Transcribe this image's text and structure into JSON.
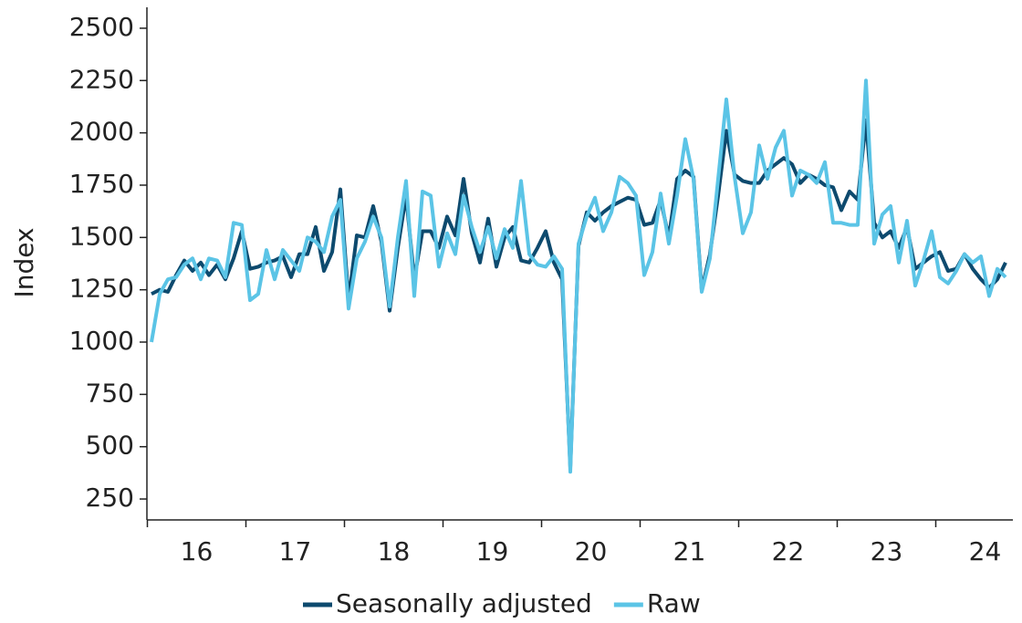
{
  "chart_data": {
    "type": "line",
    "y_label": "Index",
    "categories": [
      null,
      null,
      null,
      null,
      null,
      null,
      "16",
      null,
      null,
      null,
      null,
      null,
      null,
      null,
      null,
      null,
      null,
      null,
      "17",
      null,
      null,
      null,
      null,
      null,
      null,
      null,
      null,
      null,
      null,
      null,
      "18",
      null,
      null,
      null,
      null,
      null,
      null,
      null,
      null,
      null,
      null,
      null,
      "19",
      null,
      null,
      null,
      null,
      null,
      null,
      null,
      null,
      null,
      null,
      null,
      "20",
      null,
      null,
      null,
      null,
      null,
      null,
      null,
      null,
      null,
      null,
      null,
      "21",
      null,
      null,
      null,
      null,
      null,
      null,
      null,
      null,
      null,
      null,
      null,
      "22",
      null,
      null,
      null,
      null,
      null,
      null,
      null,
      null,
      null,
      null,
      null,
      "23",
      null,
      null,
      null,
      null,
      null,
      null,
      null,
      null,
      null,
      null,
      null,
      "24",
      null,
      null
    ],
    "series": [
      {
        "name": "Seasonally adjusted",
        "color": "#0d4a6e",
        "values": [
          1230,
          1250,
          1240,
          1320,
          1390,
          1340,
          1380,
          1320,
          1370,
          1300,
          1400,
          1530,
          1350,
          1360,
          1380,
          1390,
          1410,
          1310,
          1420,
          1420,
          1550,
          1340,
          1430,
          1730,
          1200,
          1510,
          1500,
          1650,
          1480,
          1150,
          1450,
          1700,
          1300,
          1530,
          1530,
          1450,
          1600,
          1510,
          1780,
          1520,
          1380,
          1590,
          1360,
          1500,
          1550,
          1390,
          1380,
          1450,
          1530,
          1380,
          1300,
          400,
          1460,
          1620,
          1580,
          1620,
          1650,
          1670,
          1690,
          1680,
          1560,
          1570,
          1680,
          1500,
          1780,
          1820,
          1790,
          1250,
          1420,
          1700,
          2010,
          1800,
          1770,
          1760,
          1760,
          1820,
          1850,
          1880,
          1850,
          1760,
          1800,
          1780,
          1750,
          1740,
          1630,
          1720,
          1680,
          2060,
          1570,
          1500,
          1530,
          1450,
          1550,
          1350,
          1380,
          1410,
          1430,
          1340,
          1350,
          1420,
          1350,
          1300,
          1260,
          1300,
          1380
        ]
      },
      {
        "name": "Raw",
        "color": "#5bc4e6",
        "values": [
          1000,
          1230,
          1300,
          1310,
          1370,
          1400,
          1300,
          1400,
          1390,
          1310,
          1570,
          1560,
          1200,
          1230,
          1440,
          1300,
          1440,
          1390,
          1340,
          1500,
          1480,
          1430,
          1600,
          1680,
          1160,
          1400,
          1480,
          1600,
          1500,
          1170,
          1500,
          1770,
          1220,
          1720,
          1700,
          1360,
          1520,
          1420,
          1700,
          1550,
          1430,
          1550,
          1400,
          1540,
          1450,
          1770,
          1420,
          1370,
          1360,
          1410,
          1350,
          380,
          1470,
          1600,
          1690,
          1530,
          1620,
          1790,
          1760,
          1700,
          1320,
          1430,
          1710,
          1470,
          1700,
          1970,
          1780,
          1240,
          1400,
          1780,
          2160,
          1790,
          1520,
          1620,
          1940,
          1780,
          1930,
          2010,
          1700,
          1820,
          1800,
          1760,
          1860,
          1570,
          1570,
          1560,
          1560,
          2250,
          1470,
          1610,
          1650,
          1380,
          1580,
          1270,
          1390,
          1530,
          1310,
          1280,
          1340,
          1420,
          1380,
          1410,
          1220,
          1350,
          1310
        ]
      }
    ],
    "ylim": [
      150,
      2600
    ],
    "yticks": [
      250,
      500,
      750,
      1000,
      1250,
      1500,
      1750,
      2000,
      2250,
      2500
    ],
    "legend": "bottom"
  }
}
